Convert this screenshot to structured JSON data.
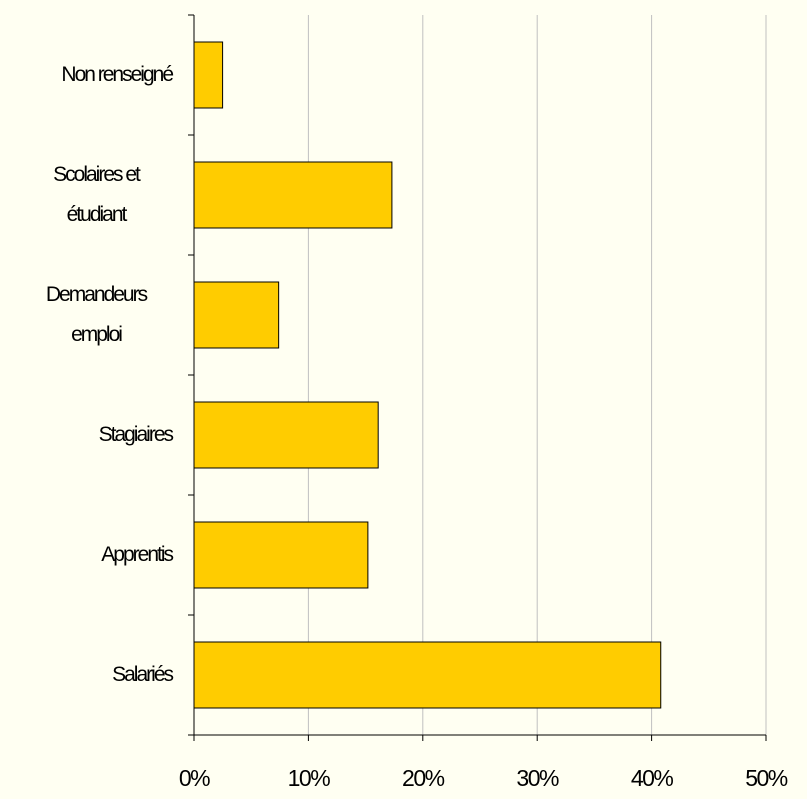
{
  "chart_data": {
    "type": "bar",
    "orientation": "horizontal",
    "categories": [
      "Non renseigné",
      "Scolaires et étudiant",
      "Demandeurs emploi",
      "Stagiaires",
      "Apprentis",
      "Salariés"
    ],
    "values": [
      2.5,
      17.3,
      7.4,
      16.1,
      15.2,
      40.8
    ],
    "color": "#ffcc00",
    "xlim": [
      0,
      50
    ],
    "xticks": [
      {
        "value": 0,
        "label": "0%"
      },
      {
        "value": 10,
        "label": "10%"
      },
      {
        "value": 20,
        "label": "20%"
      },
      {
        "value": 30,
        "label": "30%"
      },
      {
        "value": 40,
        "label": "40%"
      },
      {
        "value": 50,
        "label": "50%"
      }
    ],
    "grid": true
  }
}
